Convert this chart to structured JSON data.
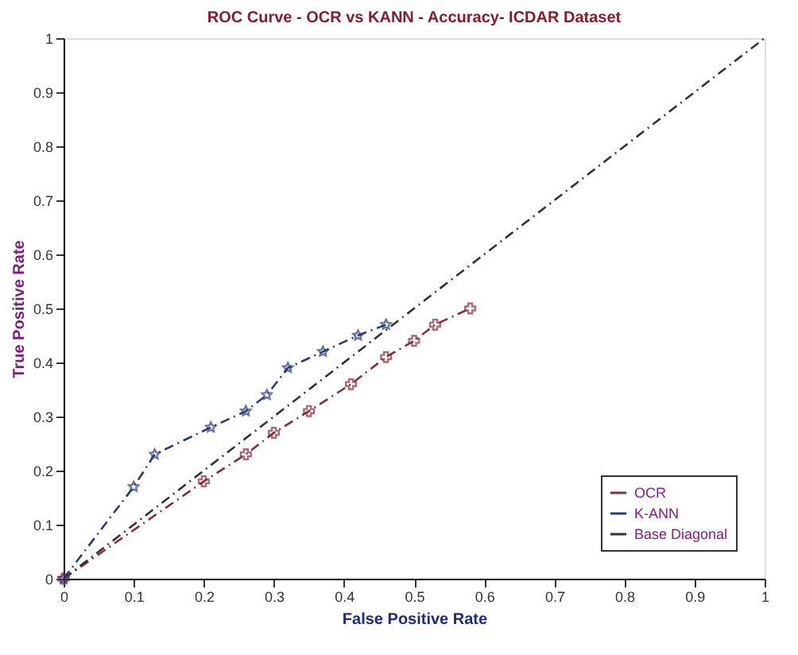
{
  "chart_data": {
    "type": "line",
    "title": "ROC Curve - OCR  vs KANN - Accuracy- ICDAR Dataset",
    "xlabel": "False Positive Rate",
    "ylabel": "True Positive Rate",
    "xlim": [
      0,
      1
    ],
    "ylim": [
      0,
      1
    ],
    "xticks": [
      0,
      0.1,
      0.2,
      0.3,
      0.4,
      0.5,
      0.6,
      0.7,
      0.8,
      0.9,
      1
    ],
    "yticks": [
      0,
      0.1,
      0.2,
      0.3,
      0.4,
      0.5,
      0.6,
      0.7,
      0.8,
      0.9,
      1
    ],
    "grid": false,
    "legend": "bottom right",
    "line_style": "dashed",
    "series": [
      {
        "name": "OCR",
        "color": "#8b2a3a",
        "marker": "cross",
        "x": [
          0,
          0.2,
          0.26,
          0.3,
          0.35,
          0.41,
          0.46,
          0.5,
          0.53,
          0.58
        ],
        "values": [
          0,
          0.18,
          0.23,
          0.27,
          0.31,
          0.36,
          0.41,
          0.44,
          0.47,
          0.5
        ]
      },
      {
        "name": "K-ANN",
        "color": "#2a3a7a",
        "marker": "star",
        "x": [
          0,
          0.1,
          0.13,
          0.21,
          0.26,
          0.29,
          0.32,
          0.37,
          0.42,
          0.46
        ],
        "values": [
          0,
          0.17,
          0.23,
          0.28,
          0.31,
          0.34,
          0.39,
          0.42,
          0.45,
          0.47
        ]
      },
      {
        "name": "Base Diagonal",
        "color": "#333333",
        "marker": "none",
        "x": [
          0,
          1
        ],
        "values": [
          0,
          1
        ]
      }
    ]
  }
}
